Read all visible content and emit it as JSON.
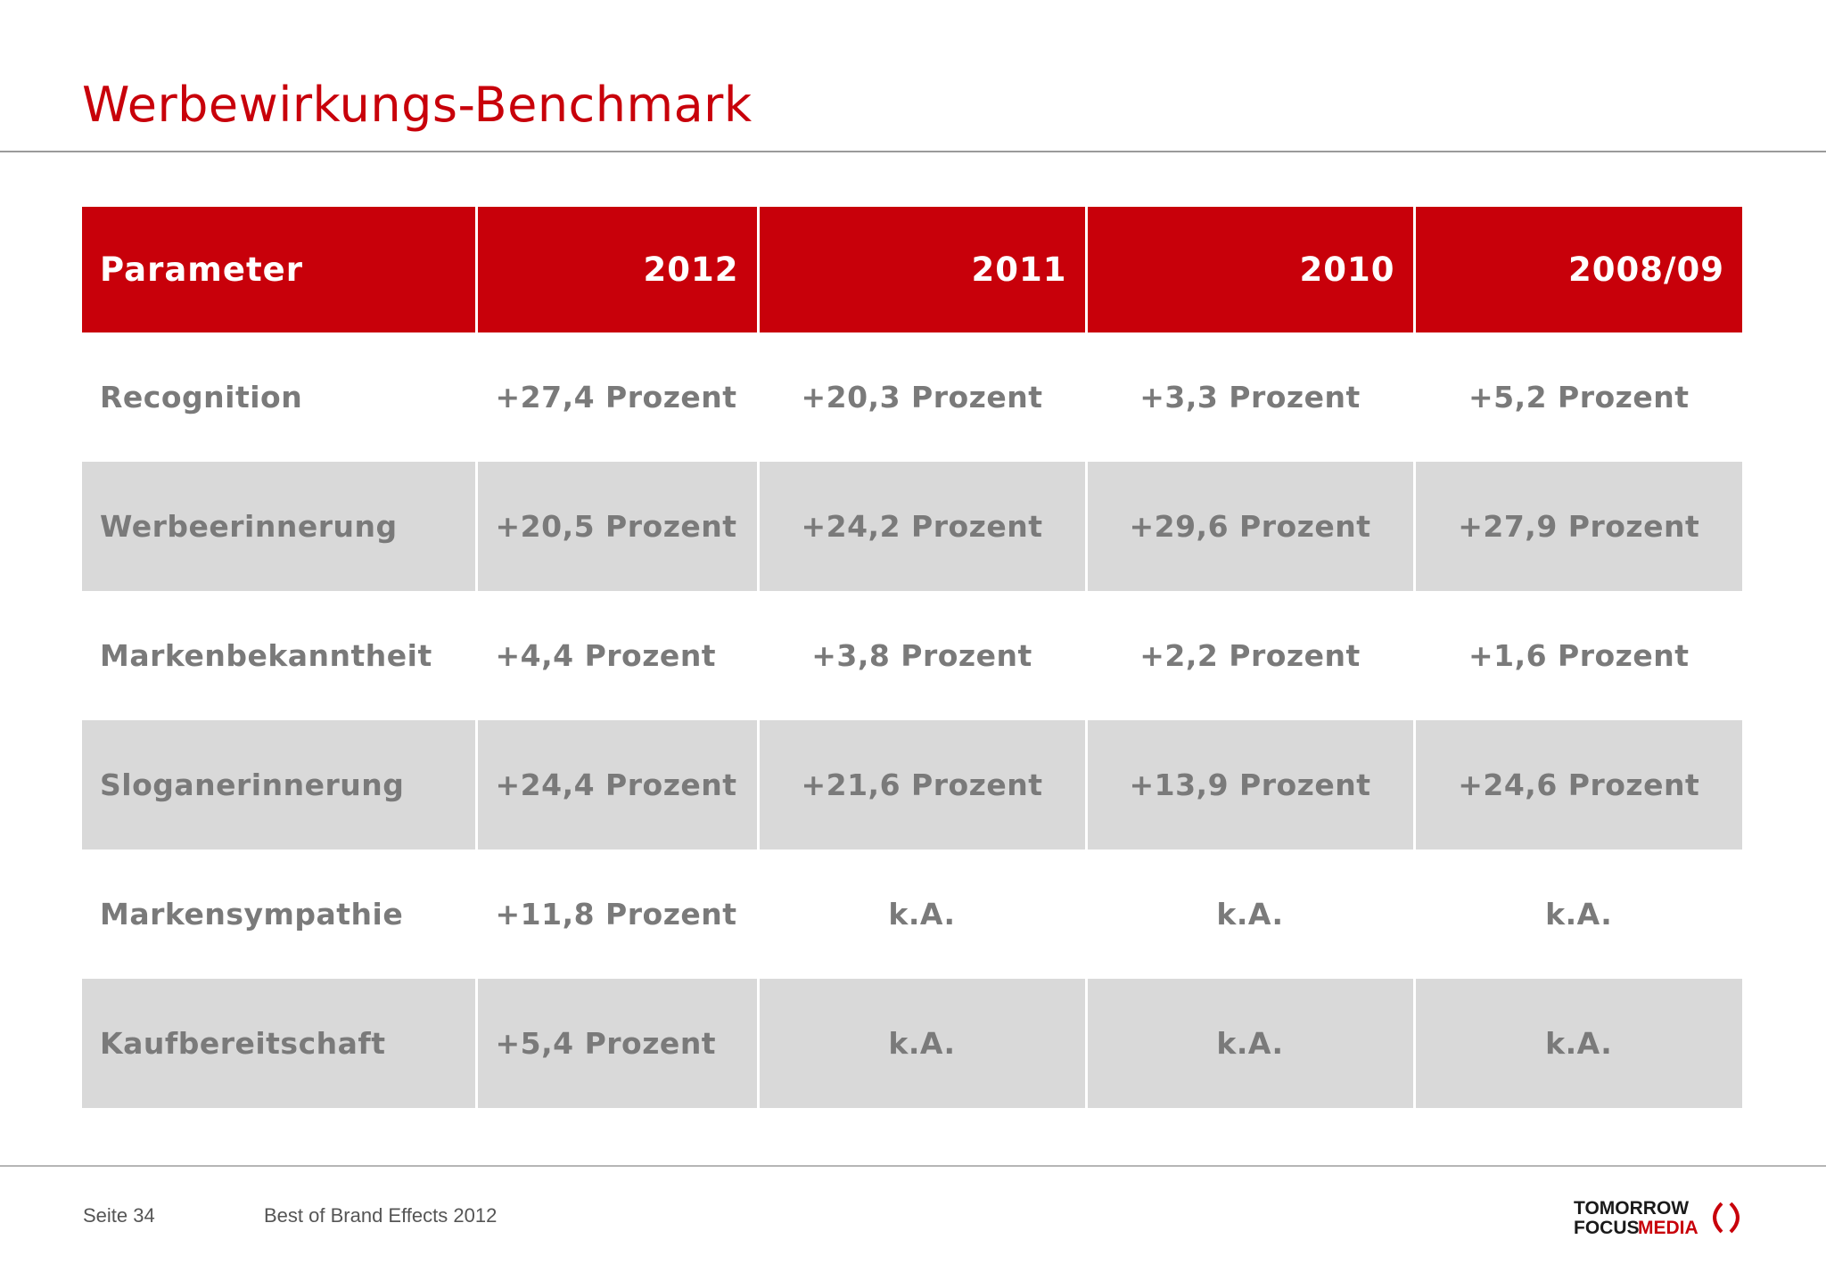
{
  "page": {
    "title": "Werbewirkungs-Benchmark"
  },
  "table": {
    "headers": [
      "Parameter",
      "2012",
      "2011",
      "2010",
      "2008/09"
    ],
    "rows": [
      {
        "param": "Recognition",
        "values": [
          "+27,4 Prozent",
          "+20,3 Prozent",
          "+3,3 Prozent",
          "+5,2 Prozent"
        ]
      },
      {
        "param": "Werbeerinnerung",
        "values": [
          "+20,5 Prozent",
          "+24,2 Prozent",
          "+29,6 Prozent",
          "+27,9 Prozent"
        ]
      },
      {
        "param": "Markenbekanntheit",
        "values": [
          "+4,4 Prozent",
          "+3,8 Prozent",
          "+2,2 Prozent",
          "+1,6 Prozent"
        ]
      },
      {
        "param": "Sloganerinnerung",
        "values": [
          "+24,4 Prozent",
          "+21,6 Prozent",
          "+13,9 Prozent",
          "+24,6 Prozent"
        ]
      },
      {
        "param": "Markensympathie",
        "values": [
          "+11,8 Prozent",
          "k.A.",
          "k.A.",
          "k.A."
        ]
      },
      {
        "param": "Kaufbereitschaft",
        "values": [
          "+5,4 Prozent",
          "k.A.",
          "k.A.",
          "k.A."
        ]
      }
    ]
  },
  "footer": {
    "page_label": "Seite 34",
    "document_label": "Best of Brand Effects 2012",
    "logo_line1": "TOMORROW",
    "logo_line2_a": "FOCUS",
    "logo_line2_b": "MEDIA"
  },
  "colors": {
    "accent_red": "#c8000a",
    "row_shade": "#d9d9d9",
    "cell_text": "#7a7a7a"
  }
}
